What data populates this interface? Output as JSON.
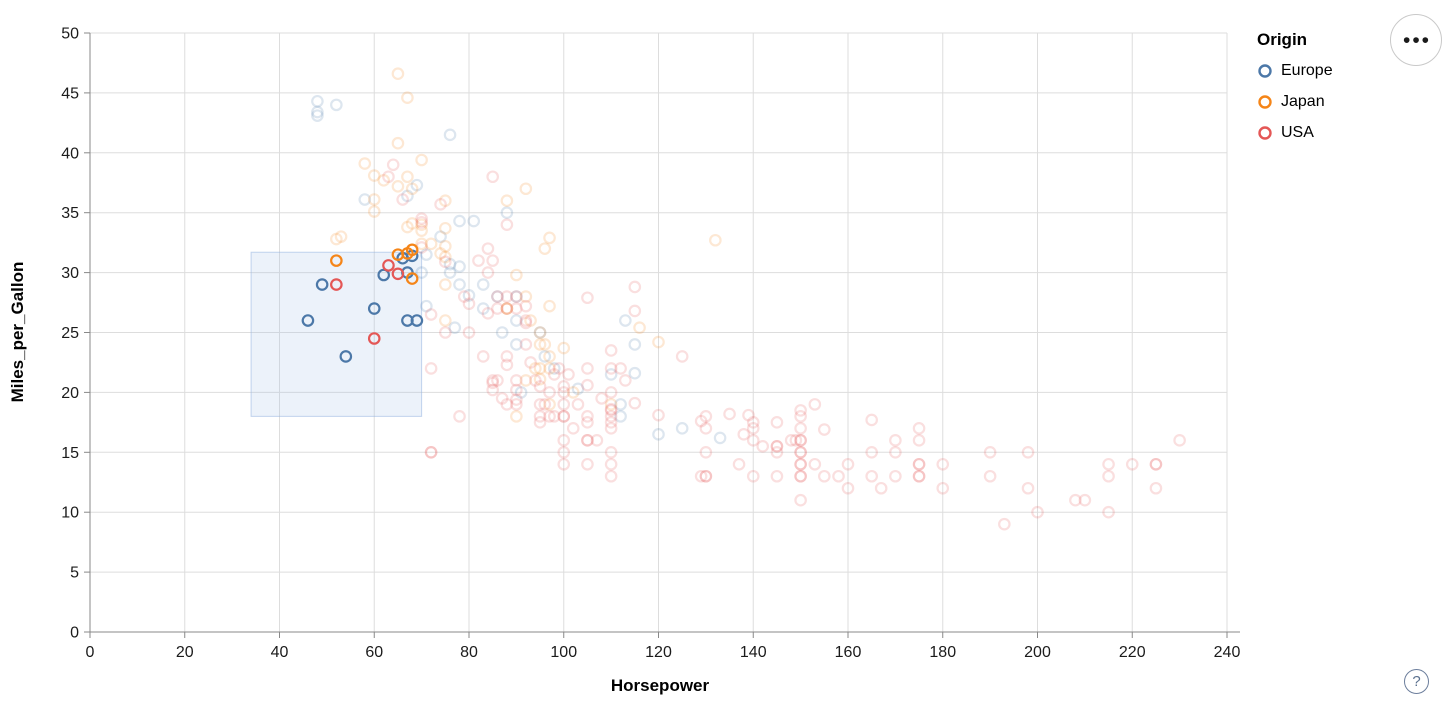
{
  "axes": {
    "x_title": "Horsepower",
    "y_title": "Miles_per_Gallon"
  },
  "legend": {
    "title": "Origin",
    "items": [
      {
        "label": "Europe",
        "color": "#4c78a8"
      },
      {
        "label": "Japan",
        "color": "#f58518"
      },
      {
        "label": "USA",
        "color": "#e45756"
      }
    ]
  },
  "controls": {
    "actions_menu_icon": "•••",
    "help_icon": "?"
  },
  "chart_data": {
    "type": "scatter",
    "title": "",
    "xlabel": "Horsepower",
    "ylabel": "Miles_per_Gallon",
    "xlim": [
      0,
      240
    ],
    "ylim": [
      0,
      50
    ],
    "x_ticks": [
      0,
      20,
      40,
      60,
      80,
      100,
      120,
      140,
      160,
      180,
      200,
      220,
      240
    ],
    "y_ticks": [
      0,
      5,
      10,
      15,
      20,
      25,
      30,
      35,
      40,
      45,
      50
    ],
    "grid": true,
    "legend_position": "top-right",
    "point_style": {
      "shape": "open-circle",
      "radius": 5.2,
      "stroke_width": 2.2,
      "faded_opacity": 0.19
    },
    "brush_selection": {
      "x_range": [
        34,
        70
      ],
      "y_range": [
        18,
        31.7
      ],
      "fill": "#aac4ea",
      "fill_opacity": 0.22,
      "stroke": "#93b3e0",
      "stroke_opacity": 0.55
    },
    "series": [
      {
        "name": "Europe",
        "color": "#4c78a8",
        "selected": [
          [
            46,
            26
          ],
          [
            49,
            29
          ],
          [
            54,
            23
          ],
          [
            60,
            27
          ],
          [
            62,
            29.8
          ],
          [
            67,
            26
          ],
          [
            69,
            26
          ],
          [
            67,
            30
          ],
          [
            66,
            31.2
          ],
          [
            68,
            31.4
          ]
        ],
        "points": [
          [
            48,
            43.4
          ],
          [
            48,
            44.3
          ],
          [
            48,
            43.1
          ],
          [
            52,
            44
          ],
          [
            76,
            41.5
          ],
          [
            67,
            36.4
          ],
          [
            69,
            37.3
          ],
          [
            58,
            36.1
          ],
          [
            78,
            34.3
          ],
          [
            81,
            34.3
          ],
          [
            88,
            35
          ],
          [
            74,
            33
          ],
          [
            71,
            31.5
          ],
          [
            76,
            30.7
          ],
          [
            78,
            30.5
          ],
          [
            80,
            28.1
          ],
          [
            77,
            25.4
          ],
          [
            78,
            29
          ],
          [
            83,
            29
          ],
          [
            70,
            30
          ],
          [
            76,
            30
          ],
          [
            86,
            28
          ],
          [
            90,
            28
          ],
          [
            83,
            27
          ],
          [
            87,
            25
          ],
          [
            90,
            24
          ],
          [
            95,
            25
          ],
          [
            113,
            26
          ],
          [
            90,
            26
          ],
          [
            96,
            23
          ],
          [
            98,
            22
          ],
          [
            115,
            24
          ],
          [
            91,
            20
          ],
          [
            112,
            18
          ],
          [
            112,
            19
          ],
          [
            110,
            21.5
          ],
          [
            103,
            20.3
          ],
          [
            115,
            21.6
          ],
          [
            120,
            16.5
          ],
          [
            133,
            16.2
          ],
          [
            125,
            17
          ],
          [
            71,
            27.2
          ]
        ]
      },
      {
        "name": "Japan",
        "color": "#f58518",
        "selected": [
          [
            52,
            31
          ],
          [
            65,
            31.5
          ],
          [
            67,
            31.6
          ],
          [
            68,
            31.9
          ],
          [
            68,
            29.5
          ]
        ],
        "points": [
          [
            65,
            46.6
          ],
          [
            67,
            44.6
          ],
          [
            65,
            40.8
          ],
          [
            70,
            39.4
          ],
          [
            58,
            39.1
          ],
          [
            60,
            38.1
          ],
          [
            62,
            37.7
          ],
          [
            67,
            38
          ],
          [
            65,
            37.2
          ],
          [
            68,
            37
          ],
          [
            92,
            37
          ],
          [
            88,
            36
          ],
          [
            75,
            36
          ],
          [
            60,
            36.1
          ],
          [
            60,
            35.1
          ],
          [
            75,
            33.7
          ],
          [
            70,
            33.5
          ],
          [
            67,
            33.8
          ],
          [
            68,
            34.1
          ],
          [
            70,
            34
          ],
          [
            53,
            33
          ],
          [
            52,
            32.8
          ],
          [
            75,
            32.2
          ],
          [
            72,
            32.4
          ],
          [
            70,
            32.4
          ],
          [
            96,
            32
          ],
          [
            97,
            32.9
          ],
          [
            132,
            32.7
          ],
          [
            75,
            31.3
          ],
          [
            74,
            31.6
          ],
          [
            90,
            29.8
          ],
          [
            75,
            29
          ],
          [
            92,
            28
          ],
          [
            88,
            27
          ],
          [
            88,
            27
          ],
          [
            97,
            27.2
          ],
          [
            93,
            26
          ],
          [
            75,
            26
          ],
          [
            95,
            25
          ],
          [
            95,
            24
          ],
          [
            96,
            24
          ],
          [
            94,
            22
          ],
          [
            97,
            22
          ],
          [
            95,
            22
          ],
          [
            100,
            23.7
          ],
          [
            116,
            25.4
          ],
          [
            120,
            24.2
          ],
          [
            95,
            21.1
          ],
          [
            110,
            19
          ],
          [
            97,
            19
          ],
          [
            90,
            18
          ],
          [
            97,
            23
          ],
          [
            102,
            20
          ],
          [
            92,
            21
          ]
        ]
      },
      {
        "name": "USA",
        "color": "#e45756",
        "selected": [
          [
            52,
            29
          ],
          [
            63,
            30.6
          ],
          [
            65,
            29.9
          ],
          [
            60,
            24.5
          ]
        ],
        "points": [
          [
            70,
            34.2
          ],
          [
            70,
            34.5
          ],
          [
            66,
            36.1
          ],
          [
            63,
            38
          ],
          [
            64,
            39
          ],
          [
            85,
            38
          ],
          [
            74,
            35.7
          ],
          [
            75,
            30.9
          ],
          [
            70,
            32.1
          ],
          [
            88,
            34
          ],
          [
            84,
            32
          ],
          [
            82,
            31
          ],
          [
            85,
            31
          ],
          [
            86,
            28
          ],
          [
            90,
            28
          ],
          [
            86,
            27
          ],
          [
            88,
            28
          ],
          [
            88,
            27
          ],
          [
            90,
            27
          ],
          [
            92,
            27.2
          ],
          [
            84,
            26.6
          ],
          [
            92,
            25.8
          ],
          [
            84,
            30
          ],
          [
            92,
            26
          ],
          [
            79,
            28
          ],
          [
            80,
            27.4
          ],
          [
            88,
            23
          ],
          [
            72,
            22
          ],
          [
            86,
            21
          ],
          [
            85,
            21
          ],
          [
            90,
            21
          ],
          [
            97,
            18
          ],
          [
            80,
            25
          ],
          [
            75,
            25
          ],
          [
            83,
            23
          ],
          [
            72,
            26.5
          ],
          [
            105,
            22
          ],
          [
            105,
            27.9
          ],
          [
            115,
            28.8
          ],
          [
            115,
            26.8
          ],
          [
            125,
            23
          ],
          [
            110,
            23.5
          ],
          [
            112,
            22
          ],
          [
            110,
            22
          ],
          [
            92,
            24
          ],
          [
            100,
            19
          ],
          [
            100,
            18
          ],
          [
            100,
            18
          ],
          [
            100,
            16
          ],
          [
            100,
            15
          ],
          [
            100,
            20
          ],
          [
            100,
            20.5
          ],
          [
            105,
            18
          ],
          [
            105,
            16
          ],
          [
            105,
            16
          ],
          [
            105,
            17.5
          ],
          [
            105,
            20.6
          ],
          [
            98,
            18
          ],
          [
            95,
            19
          ],
          [
            95,
            20.5
          ],
          [
            95,
            17.5
          ],
          [
            90,
            19
          ],
          [
            90,
            20.2
          ],
          [
            90,
            19.4
          ],
          [
            88,
            19
          ],
          [
            88,
            22.3
          ],
          [
            85,
            20.2
          ],
          [
            85,
            20.8
          ],
          [
            78,
            18
          ],
          [
            110,
            18
          ],
          [
            110,
            18.5
          ],
          [
            110,
            17
          ],
          [
            110,
            17.5
          ],
          [
            110,
            15
          ],
          [
            110,
            20
          ],
          [
            110,
            18.6
          ],
          [
            120,
            18.1
          ],
          [
            115,
            19.1
          ],
          [
            72,
            15
          ],
          [
            72,
            15
          ],
          [
            100,
            14
          ],
          [
            105,
            14
          ],
          [
            110,
            13
          ],
          [
            110,
            14
          ],
          [
            94,
            21
          ],
          [
            96,
            19
          ],
          [
            102,
            17
          ],
          [
            107,
            16
          ],
          [
            108,
            19.5
          ],
          [
            95,
            18
          ],
          [
            98,
            21.5
          ],
          [
            103,
            19
          ],
          [
            113,
            21
          ],
          [
            97,
            20
          ],
          [
            99,
            22
          ],
          [
            93,
            22.5
          ],
          [
            101,
            21.5
          ],
          [
            87,
            19.5
          ],
          [
            129,
            13
          ],
          [
            129,
            17.6
          ],
          [
            130,
            15
          ],
          [
            130,
            13
          ],
          [
            130,
            13
          ],
          [
            130,
            17
          ],
          [
            130,
            18
          ],
          [
            135,
            18.2
          ],
          [
            137,
            14
          ],
          [
            138,
            16.5
          ],
          [
            139,
            18.1
          ],
          [
            140,
            17
          ],
          [
            140,
            16
          ],
          [
            140,
            17.5
          ],
          [
            140,
            13
          ],
          [
            142,
            15.5
          ],
          [
            145,
            13
          ],
          [
            145,
            15
          ],
          [
            145,
            15.5
          ],
          [
            145,
            15.5
          ],
          [
            145,
            17.5
          ],
          [
            148,
            16
          ],
          [
            149,
            16
          ],
          [
            150,
            18
          ],
          [
            150,
            16
          ],
          [
            150,
            15
          ],
          [
            150,
            15
          ],
          [
            150,
            14
          ],
          [
            150,
            14
          ],
          [
            150,
            13
          ],
          [
            150,
            13
          ],
          [
            150,
            17
          ],
          [
            150,
            16
          ],
          [
            150,
            11
          ],
          [
            150,
            18.5
          ],
          [
            153,
            19
          ],
          [
            153,
            14
          ],
          [
            155,
            13
          ],
          [
            155,
            16.9
          ],
          [
            158,
            13
          ],
          [
            160,
            14
          ],
          [
            160,
            12
          ],
          [
            165,
            15
          ],
          [
            165,
            13
          ],
          [
            165,
            17.7
          ],
          [
            167,
            12
          ],
          [
            170,
            15
          ],
          [
            170,
            13
          ],
          [
            170,
            16
          ],
          [
            175,
            17
          ],
          [
            175,
            14
          ],
          [
            175,
            14
          ],
          [
            175,
            13
          ],
          [
            175,
            13
          ],
          [
            175,
            16
          ],
          [
            180,
            14
          ],
          [
            180,
            12
          ],
          [
            190,
            15
          ],
          [
            190,
            13
          ],
          [
            193,
            9
          ],
          [
            198,
            15
          ],
          [
            198,
            12
          ],
          [
            200,
            10
          ],
          [
            208,
            11
          ],
          [
            210,
            11
          ],
          [
            215,
            14
          ],
          [
            215,
            10
          ],
          [
            215,
            13
          ],
          [
            220,
            14
          ],
          [
            225,
            14
          ],
          [
            225,
            14
          ],
          [
            225,
            12
          ],
          [
            230,
            16
          ]
        ]
      }
    ]
  }
}
